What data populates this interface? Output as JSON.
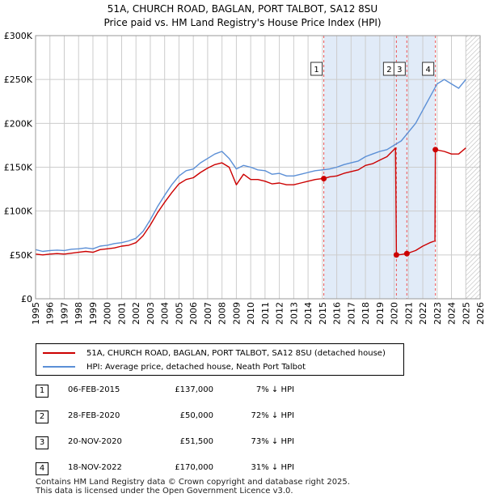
{
  "title_line1": "51A, CHURCH ROAD, BAGLAN, PORT TALBOT, SA12 8SU",
  "title_line2": "Price paid vs. HM Land Registry's House Price Index (HPI)",
  "legend": {
    "property_label": "51A, CHURCH ROAD, BAGLAN, PORT TALBOT, SA12 8SU (detached house)",
    "hpi_label": "HPI: Average price, detached house, Neath Port Talbot"
  },
  "transactions": [
    {
      "num": "1",
      "date": "06-FEB-2015",
      "price": "£137,000",
      "hpi": "7% ↓ HPI"
    },
    {
      "num": "2",
      "date": "28-FEB-2020",
      "price": "£50,000",
      "hpi": "72% ↓ HPI"
    },
    {
      "num": "3",
      "date": "20-NOV-2020",
      "price": "£51,500",
      "hpi": "73% ↓ HPI"
    },
    {
      "num": "4",
      "date": "18-NOV-2022",
      "price": "£170,000",
      "hpi": "31% ↓ HPI"
    }
  ],
  "footer_line1": "Contains HM Land Registry data © Crown copyright and database right 2025.",
  "footer_line2": "This data is licensed under the Open Government Licence v3.0.",
  "colors": {
    "property": "#cc0000",
    "hpi": "#5b8fd6",
    "shade": "#dce7f7",
    "grid": "#cccccc",
    "vline": "#ee5555"
  },
  "chart_data": {
    "type": "line",
    "title": "51A, CHURCH ROAD, BAGLAN, PORT TALBOT, SA12 8SU",
    "subtitle": "Price paid vs. HM Land Registry's House Price Index (HPI)",
    "xlabel": "",
    "ylabel": "",
    "xlim": [
      1995,
      2026
    ],
    "ylim": [
      0,
      300000
    ],
    "grid": true,
    "legend_position": "bottom",
    "y_ticks": [
      {
        "value": 0,
        "label": "£0"
      },
      {
        "value": 50000,
        "label": "£50K"
      },
      {
        "value": 100000,
        "label": "£100K"
      },
      {
        "value": 150000,
        "label": "£150K"
      },
      {
        "value": 200000,
        "label": "£200K"
      },
      {
        "value": 250000,
        "label": "£250K"
      },
      {
        "value": 300000,
        "label": "£300K"
      }
    ],
    "x_ticks": [
      "1995",
      "1996",
      "1997",
      "1998",
      "1999",
      "2000",
      "2001",
      "2002",
      "2003",
      "2004",
      "2005",
      "2006",
      "2007",
      "2008",
      "2009",
      "2010",
      "2011",
      "2012",
      "2013",
      "2014",
      "2015",
      "2016",
      "2017",
      "2018",
      "2019",
      "2020",
      "2021",
      "2022",
      "2023",
      "2024",
      "2025",
      "2026"
    ],
    "shaded_ranges": [
      [
        2015.1,
        2022.88
      ]
    ],
    "hatched_from": 2025.0,
    "sale_markers": [
      {
        "label": "1",
        "x": 2015.1,
        "y": 137000
      },
      {
        "label": "2",
        "x": 2020.16,
        "y": 50000
      },
      {
        "label": "3",
        "x": 2020.89,
        "y": 51500
      },
      {
        "label": "4",
        "x": 2022.88,
        "y": 170000
      }
    ],
    "series": [
      {
        "name": "HPI: Average price, detached house, Neath Port Talbot",
        "color": "#5b8fd6",
        "points": [
          [
            1995.0,
            56000
          ],
          [
            1995.5,
            54000
          ],
          [
            1996.0,
            55000
          ],
          [
            1996.5,
            55500
          ],
          [
            1997.0,
            55000
          ],
          [
            1997.5,
            56500
          ],
          [
            1998.0,
            57000
          ],
          [
            1998.5,
            58000
          ],
          [
            1999.0,
            57000
          ],
          [
            1999.5,
            60000
          ],
          [
            2000.0,
            61000
          ],
          [
            2000.5,
            63000
          ],
          [
            2001.0,
            64000
          ],
          [
            2001.5,
            66000
          ],
          [
            2002.0,
            69000
          ],
          [
            2002.5,
            77000
          ],
          [
            2003.0,
            90000
          ],
          [
            2003.5,
            105000
          ],
          [
            2004.0,
            118000
          ],
          [
            2004.5,
            130000
          ],
          [
            2005.0,
            140000
          ],
          [
            2005.5,
            146000
          ],
          [
            2006.0,
            148000
          ],
          [
            2006.5,
            155000
          ],
          [
            2007.0,
            160000
          ],
          [
            2007.5,
            165000
          ],
          [
            2008.0,
            168000
          ],
          [
            2008.5,
            160000
          ],
          [
            2009.0,
            148000
          ],
          [
            2009.5,
            152000
          ],
          [
            2010.0,
            150000
          ],
          [
            2010.5,
            147000
          ],
          [
            2011.0,
            146000
          ],
          [
            2011.5,
            142000
          ],
          [
            2012.0,
            143000
          ],
          [
            2012.5,
            140000
          ],
          [
            2013.0,
            140000
          ],
          [
            2013.5,
            142000
          ],
          [
            2014.0,
            144000
          ],
          [
            2014.5,
            146000
          ],
          [
            2015.0,
            147000
          ],
          [
            2015.5,
            148000
          ],
          [
            2016.0,
            150000
          ],
          [
            2016.5,
            153000
          ],
          [
            2017.0,
            155000
          ],
          [
            2017.5,
            157000
          ],
          [
            2018.0,
            162000
          ],
          [
            2018.5,
            165000
          ],
          [
            2019.0,
            168000
          ],
          [
            2019.5,
            170000
          ],
          [
            2020.0,
            175000
          ],
          [
            2020.5,
            180000
          ],
          [
            2021.0,
            190000
          ],
          [
            2021.5,
            200000
          ],
          [
            2022.0,
            215000
          ],
          [
            2022.5,
            230000
          ],
          [
            2023.0,
            245000
          ],
          [
            2023.5,
            250000
          ],
          [
            2024.0,
            245000
          ],
          [
            2024.5,
            240000
          ],
          [
            2025.0,
            250000
          ]
        ]
      },
      {
        "name": "51A, CHURCH ROAD, BAGLAN, PORT TALBOT, SA12 8SU (detached house)",
        "color": "#cc0000",
        "points": [
          [
            1995.0,
            51000
          ],
          [
            1995.5,
            50000
          ],
          [
            1996.0,
            51000
          ],
          [
            1996.5,
            51500
          ],
          [
            1997.0,
            51000
          ],
          [
            1997.5,
            52000
          ],
          [
            1998.0,
            53000
          ],
          [
            1998.5,
            54000
          ],
          [
            1999.0,
            53000
          ],
          [
            1999.5,
            56000
          ],
          [
            2000.0,
            57000
          ],
          [
            2000.5,
            58000
          ],
          [
            2001.0,
            60000
          ],
          [
            2001.5,
            61000
          ],
          [
            2002.0,
            64000
          ],
          [
            2002.5,
            72000
          ],
          [
            2003.0,
            84000
          ],
          [
            2003.5,
            98000
          ],
          [
            2004.0,
            110000
          ],
          [
            2004.5,
            121000
          ],
          [
            2005.0,
            131000
          ],
          [
            2005.5,
            136000
          ],
          [
            2006.0,
            138000
          ],
          [
            2006.5,
            144000
          ],
          [
            2007.0,
            149000
          ],
          [
            2007.5,
            153000
          ],
          [
            2008.0,
            155000
          ],
          [
            2008.5,
            150000
          ],
          [
            2009.0,
            130000
          ],
          [
            2009.5,
            142000
          ],
          [
            2010.0,
            136000
          ],
          [
            2010.5,
            136000
          ],
          [
            2011.0,
            134000
          ],
          [
            2011.5,
            131000
          ],
          [
            2012.0,
            132000
          ],
          [
            2012.5,
            130000
          ],
          [
            2013.0,
            130000
          ],
          [
            2013.5,
            132000
          ],
          [
            2014.0,
            134000
          ],
          [
            2014.5,
            136000
          ],
          [
            2015.0,
            137000
          ],
          [
            2015.1,
            137000
          ],
          [
            2015.5,
            139000
          ],
          [
            2016.0,
            140000
          ],
          [
            2016.5,
            143000
          ],
          [
            2017.0,
            145000
          ],
          [
            2017.5,
            147000
          ],
          [
            2018.0,
            152000
          ],
          [
            2018.5,
            154000
          ],
          [
            2019.0,
            158000
          ],
          [
            2019.5,
            162000
          ],
          [
            2020.1,
            172000
          ],
          [
            2020.16,
            50000
          ],
          [
            2020.5,
            50500
          ],
          [
            2020.89,
            51500
          ],
          [
            2021.5,
            55000
          ],
          [
            2022.0,
            60000
          ],
          [
            2022.5,
            64000
          ],
          [
            2022.85,
            66000
          ],
          [
            2022.88,
            170000
          ],
          [
            2023.5,
            168000
          ],
          [
            2024.0,
            165000
          ],
          [
            2024.5,
            165000
          ],
          [
            2025.0,
            172000
          ]
        ]
      }
    ]
  }
}
